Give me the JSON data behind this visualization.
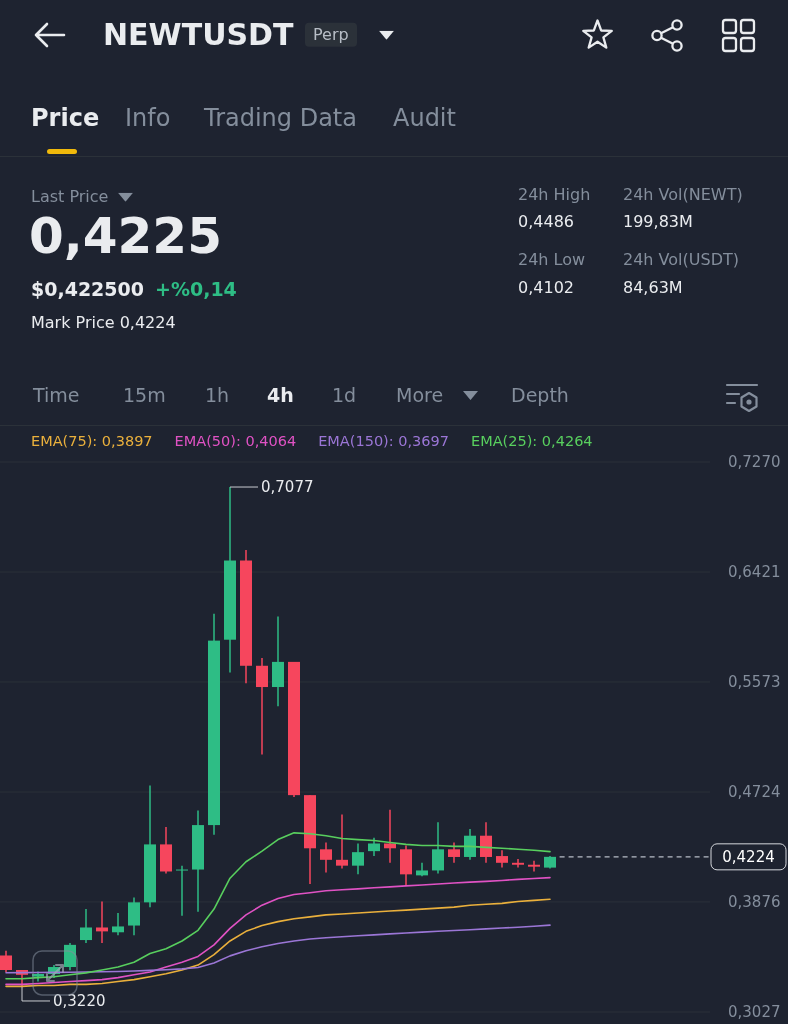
{
  "chart_data": {
    "type": "candlestick",
    "title": "NEWTUSDT",
    "categories": [
      null,
      null,
      null,
      null,
      null,
      null,
      null,
      null,
      null,
      null,
      null,
      null,
      null,
      null,
      null,
      null,
      null,
      null,
      null,
      null,
      null,
      null,
      null,
      null,
      null,
      null,
      null,
      null,
      null,
      null,
      null,
      null,
      null,
      null,
      null
    ],
    "ohlc": [
      [
        0.3463,
        0.35,
        0.3336,
        0.3351
      ],
      [
        0.3351,
        0.3351,
        0.322,
        0.3314
      ],
      [
        0.33,
        0.334,
        0.3262,
        0.332
      ],
      [
        0.332,
        0.339,
        0.329,
        0.3374
      ],
      [
        0.3374,
        0.356,
        0.335,
        0.3545
      ],
      [
        0.3582,
        0.3821,
        0.356,
        0.3679
      ],
      [
        0.3679,
        0.388,
        0.356,
        0.3649
      ],
      [
        0.3642,
        0.3791,
        0.362,
        0.3687
      ],
      [
        0.3694,
        0.391,
        0.362,
        0.3873
      ],
      [
        0.3873,
        0.4774,
        0.3836,
        0.432
      ],
      [
        0.432,
        0.4454,
        0.4096,
        0.4111
      ],
      [
        0.4119,
        0.4156,
        0.3769,
        0.4126
      ],
      [
        0.4126,
        0.4581,
        0.38,
        0.4469
      ],
      [
        0.4469,
        0.61,
        0.4394,
        0.5892
      ],
      [
        0.5899,
        0.7077,
        0.5646,
        0.651
      ],
      [
        0.651,
        0.6592,
        0.5564,
        0.5698
      ],
      [
        0.5698,
        0.5758,
        0.5013,
        0.5534
      ],
      [
        0.5534,
        0.6078,
        0.5385,
        0.5728
      ],
      [
        0.5728,
        0.5728,
        0.4685,
        0.47
      ],
      [
        0.47,
        0.47,
        0.4014,
        0.429
      ],
      [
        0.4282,
        0.4335,
        0.4104,
        0.4201
      ],
      [
        0.4201,
        0.4551,
        0.4134,
        0.4156
      ],
      [
        0.4156,
        0.4327,
        0.4089,
        0.426
      ],
      [
        0.4268,
        0.4372,
        0.423,
        0.4327
      ],
      [
        0.4327,
        0.4588,
        0.4178,
        0.429
      ],
      [
        0.4282,
        0.4312,
        0.4007,
        0.4089
      ],
      [
        0.4081,
        0.4178,
        0.4074,
        0.4119
      ],
      [
        0.4119,
        0.4491,
        0.4096,
        0.4282
      ],
      [
        0.4282,
        0.4335,
        0.4178,
        0.4223
      ],
      [
        0.4223,
        0.4439,
        0.4201,
        0.4387
      ],
      [
        0.4387,
        0.4491,
        0.4178,
        0.4223
      ],
      [
        0.423,
        0.4275,
        0.4141,
        0.4178
      ],
      [
        0.4178,
        0.4208,
        0.4141,
        0.4163
      ],
      [
        0.4163,
        0.4193,
        0.4111,
        0.4148
      ],
      [
        0.4141,
        0.423,
        0.4134,
        0.4224
      ]
    ],
    "colors": [
      "#f6465d",
      "#f6465d",
      "#2ebd85",
      "#2ebd85",
      "#2ebd85",
      "#2ebd85",
      "#f6465d",
      "#2ebd85",
      "#2ebd85",
      "#2ebd85",
      "#f6465d",
      "#2ebd85",
      "#2ebd85",
      "#2ebd85",
      "#2ebd85",
      "#f6465d",
      "#f6465d",
      "#2ebd85",
      "#f6465d",
      "#f6465d",
      "#f6465d",
      "#f6465d",
      "#2ebd85",
      "#2ebd85",
      "#f6465d",
      "#f6465d",
      "#2ebd85",
      "#2ebd85",
      "#f6465d",
      "#2ebd85",
      "#f6465d",
      "#f6465d",
      "#f6465d",
      "#f6465d",
      "#2ebd85"
    ],
    "series": [
      {
        "name": "EMA(75): 0,3897",
        "type": "line",
        "color": "#eab03c",
        "values": [
          0.3225,
          0.3225,
          0.3232,
          0.3232,
          0.324,
          0.324,
          0.3247,
          0.3262,
          0.3277,
          0.3299,
          0.3322,
          0.3351,
          0.3389,
          0.347,
          0.3575,
          0.3649,
          0.3694,
          0.3724,
          0.3746,
          0.3761,
          0.3776,
          0.3783,
          0.3791,
          0.3798,
          0.3806,
          0.3813,
          0.3821,
          0.3828,
          0.3836,
          0.3851,
          0.3858,
          0.3865,
          0.388,
          0.3888,
          0.3897
        ]
      },
      {
        "name": "EMA(50): 0,4064",
        "type": "line",
        "color": "#e052c4",
        "values": [
          0.324,
          0.324,
          0.3247,
          0.3254,
          0.3262,
          0.3269,
          0.3277,
          0.3292,
          0.3314,
          0.3336,
          0.3374,
          0.3411,
          0.3456,
          0.3545,
          0.3672,
          0.3776,
          0.3851,
          0.3903,
          0.3933,
          0.3947,
          0.3962,
          0.397,
          0.3977,
          0.3985,
          0.3992,
          0.4,
          0.4007,
          0.4014,
          0.4022,
          0.4029,
          0.4035,
          0.4042,
          0.405,
          0.4057,
          0.4064
        ]
      },
      {
        "name": "EMA(150): 0,3697",
        "type": "line",
        "color": "#9b76d6",
        "values": [
          0.333,
          0.3331,
          0.3332,
          0.3333,
          0.3334,
          0.3336,
          0.3338,
          0.334,
          0.3343,
          0.3348,
          0.3353,
          0.336,
          0.337,
          0.3405,
          0.346,
          0.35,
          0.353,
          0.3555,
          0.3575,
          0.359,
          0.36,
          0.3608,
          0.3615,
          0.3622,
          0.363,
          0.3637,
          0.3643,
          0.365,
          0.3656,
          0.3662,
          0.3668,
          0.3675,
          0.3681,
          0.3689,
          0.3697
        ]
      },
      {
        "name": "EMA(25): 0,4264",
        "type": "line",
        "color": "#58cf5e",
        "values": [
          0.3284,
          0.3284,
          0.3292,
          0.3299,
          0.3314,
          0.3329,
          0.3351,
          0.3374,
          0.3411,
          0.3478,
          0.3515,
          0.3575,
          0.3657,
          0.3821,
          0.4059,
          0.4186,
          0.4268,
          0.4357,
          0.4409,
          0.4402,
          0.4387,
          0.4365,
          0.4357,
          0.435,
          0.4335,
          0.432,
          0.4312,
          0.4312,
          0.4305,
          0.4305,
          0.4297,
          0.429,
          0.4282,
          0.4275,
          0.4264
        ]
      }
    ],
    "ylim": [
      0.3027,
      0.727
    ],
    "yticks": [
      {
        "value": 0.727,
        "label": "0,7270"
      },
      {
        "value": 0.6421,
        "label": "0,6421"
      },
      {
        "value": 0.5573,
        "label": "0,5573"
      },
      {
        "value": 0.4724,
        "label": "0,4724"
      },
      {
        "value": 0.3876,
        "label": "0,3876"
      },
      {
        "value": 0.3027,
        "label": "0,3027"
      }
    ],
    "ref_lines": [
      {
        "axis": "y",
        "value": 0.4224,
        "label": "0,4224",
        "color": "#b7bdc6",
        "line_style": "dashed"
      }
    ],
    "annotations": [
      "Perp",
      "Price",
      "Info",
      "Trading Data",
      "Audit",
      "Last Price",
      "0,4225",
      "$0,422500",
      "+%0,14",
      "Mark Price 0,4224",
      "24h High",
      "0,4486",
      "24h Vol(NEWT)",
      "199,83M",
      "24h Low",
      "0,4102",
      "24h Vol(USDT)",
      "84,63M",
      "Time",
      "15m",
      "1h",
      "4h",
      "1d",
      "More",
      "Depth",
      "0,7077",
      "0,3220"
    ],
    "grid": "y",
    "legend": "top",
    "tick_labels": "y"
  }
}
